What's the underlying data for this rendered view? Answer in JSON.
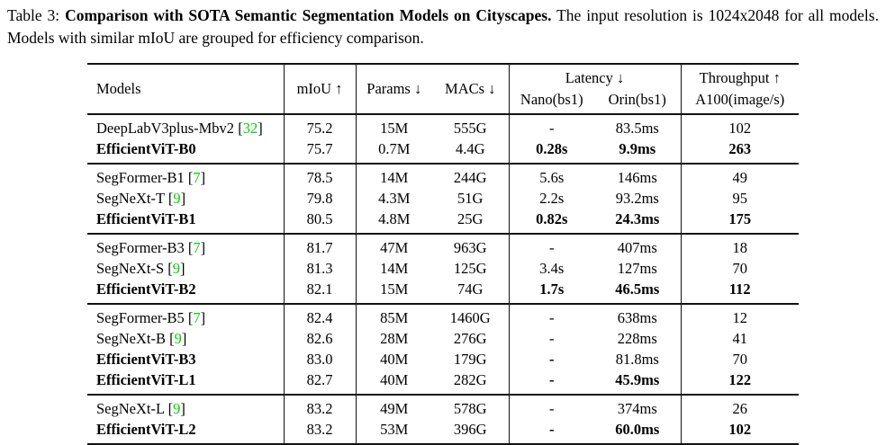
{
  "caption": {
    "prefix": "Table 3: ",
    "bold": "Comparison with SOTA Semantic Segmentation Models on Cityscapes.",
    "rest": " The input resolution is 1024x2048 for all models. Models with similar mIoU are grouped for efficiency comparison."
  },
  "table": {
    "colors": {
      "citation_green": "#00d400",
      "rule": "#111111"
    },
    "headers": {
      "models": "Models",
      "miou": "mIoU ↑",
      "params": "Params ↓",
      "macs": "MACs ↓",
      "latency": "Latency ↓",
      "nano": "Nano(bs1)",
      "orin": "Orin(bs1)",
      "throughput": "Throughput ↑",
      "throughput_sub": "A100(image/s)"
    },
    "groups": [
      {
        "rows": [
          {
            "model": "DeepLabV3plus-Mbv2",
            "cite": "32",
            "model_bold": false,
            "values": [
              "75.2",
              "15M",
              "555G",
              "-",
              "83.5ms",
              "102"
            ],
            "bold_values": [
              false,
              false,
              false,
              false,
              false,
              false
            ]
          },
          {
            "model": "EfficientViT-B0",
            "cite": null,
            "model_bold": true,
            "values": [
              "75.7",
              "0.7M",
              "4.4G",
              "0.28s",
              "9.9ms",
              "263"
            ],
            "bold_values": [
              false,
              false,
              false,
              true,
              true,
              true
            ]
          }
        ]
      },
      {
        "rows": [
          {
            "model": "SegFormer-B1",
            "cite": "7",
            "model_bold": false,
            "values": [
              "78.5",
              "14M",
              "244G",
              "5.6s",
              "146ms",
              "49"
            ],
            "bold_values": [
              false,
              false,
              false,
              false,
              false,
              false
            ]
          },
          {
            "model": "SegNeXt-T",
            "cite": "9",
            "model_bold": false,
            "values": [
              "79.8",
              "4.3M",
              "51G",
              "2.2s",
              "93.2ms",
              "95"
            ],
            "bold_values": [
              false,
              false,
              false,
              false,
              false,
              false
            ]
          },
          {
            "model": "EfficientViT-B1",
            "cite": null,
            "model_bold": true,
            "values": [
              "80.5",
              "4.8M",
              "25G",
              "0.82s",
              "24.3ms",
              "175"
            ],
            "bold_values": [
              false,
              false,
              false,
              true,
              true,
              true
            ]
          }
        ]
      },
      {
        "rows": [
          {
            "model": "SegFormer-B3",
            "cite": "7",
            "model_bold": false,
            "values": [
              "81.7",
              "47M",
              "963G",
              "-",
              "407ms",
              "18"
            ],
            "bold_values": [
              false,
              false,
              false,
              false,
              false,
              false
            ]
          },
          {
            "model": "SegNeXt-S",
            "cite": "9",
            "model_bold": false,
            "values": [
              "81.3",
              "14M",
              "125G",
              "3.4s",
              "127ms",
              "70"
            ],
            "bold_values": [
              false,
              false,
              false,
              false,
              false,
              false
            ]
          },
          {
            "model": "EfficientViT-B2",
            "cite": null,
            "model_bold": true,
            "values": [
              "82.1",
              "15M",
              "74G",
              "1.7s",
              "46.5ms",
              "112"
            ],
            "bold_values": [
              false,
              false,
              false,
              true,
              true,
              true
            ]
          }
        ]
      },
      {
        "rows": [
          {
            "model": "SegFormer-B5",
            "cite": "7",
            "model_bold": false,
            "values": [
              "82.4",
              "85M",
              "1460G",
              "-",
              "638ms",
              "12"
            ],
            "bold_values": [
              false,
              false,
              false,
              false,
              false,
              false
            ]
          },
          {
            "model": "SegNeXt-B",
            "cite": "9",
            "model_bold": false,
            "values": [
              "82.6",
              "28M",
              "276G",
              "-",
              "228ms",
              "41"
            ],
            "bold_values": [
              false,
              false,
              false,
              false,
              false,
              false
            ]
          },
          {
            "model": "EfficientViT-B3",
            "cite": null,
            "model_bold": true,
            "values": [
              "83.0",
              "40M",
              "179G",
              "-",
              "81.8ms",
              "70"
            ],
            "bold_values": [
              false,
              false,
              false,
              true,
              false,
              false
            ]
          },
          {
            "model": "EfficientViT-L1",
            "cite": null,
            "model_bold": true,
            "values": [
              "82.7",
              "40M",
              "282G",
              "-",
              "45.9ms",
              "122"
            ],
            "bold_values": [
              false,
              false,
              false,
              true,
              true,
              true
            ]
          }
        ]
      },
      {
        "rows": [
          {
            "model": "SegNeXt-L",
            "cite": "9",
            "model_bold": false,
            "values": [
              "83.2",
              "49M",
              "578G",
              "-",
              "374ms",
              "26"
            ],
            "bold_values": [
              false,
              false,
              false,
              false,
              false,
              false
            ]
          },
          {
            "model": "EfficientViT-L2",
            "cite": null,
            "model_bold": true,
            "values": [
              "83.2",
              "53M",
              "396G",
              "-",
              "60.0ms",
              "102"
            ],
            "bold_values": [
              false,
              false,
              false,
              true,
              true,
              true
            ]
          }
        ]
      }
    ]
  }
}
